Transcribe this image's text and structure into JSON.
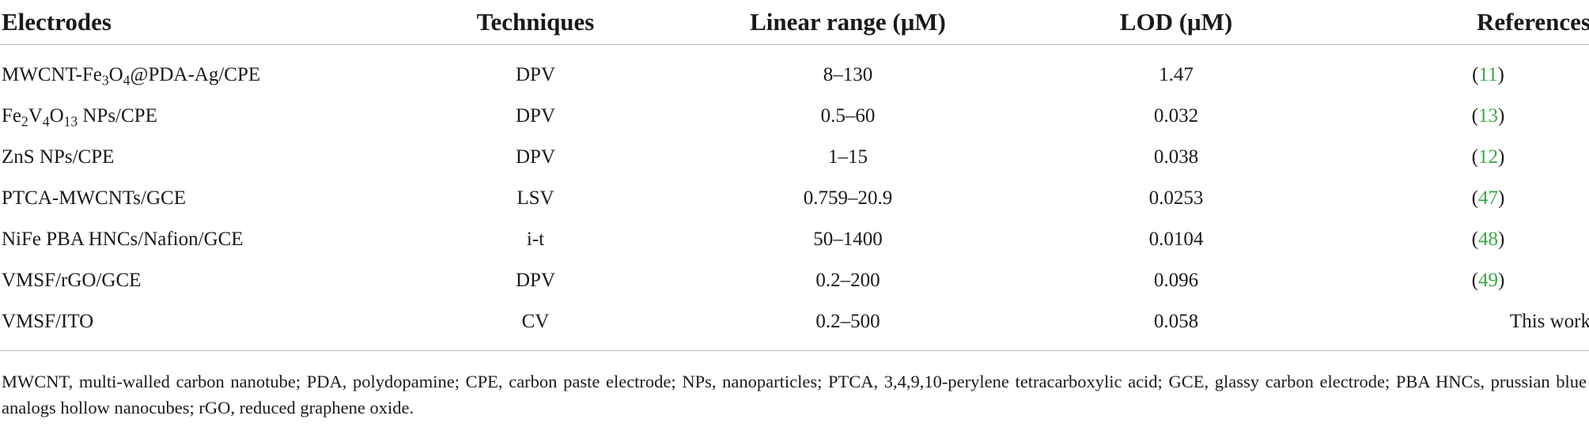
{
  "table": {
    "headers": [
      "Electrodes",
      "Techniques",
      "Linear range (μM)",
      "LOD (μM)",
      "References"
    ],
    "rows": [
      {
        "electrode_parts": [
          "MWCNT-Fe",
          "3",
          "O",
          "4",
          "@PDA-Ag/CPE"
        ],
        "technique": "DPV",
        "linear_range": "8–130",
        "lod": "1.47",
        "reference": {
          "open": "(",
          "num": "11",
          "close": ")"
        }
      },
      {
        "electrode_parts": [
          "Fe",
          "2",
          "V",
          "4",
          "O",
          "13",
          " NPs/CPE"
        ],
        "technique": "DPV",
        "linear_range": "0.5–60",
        "lod": "0.032",
        "reference": {
          "open": "(",
          "num": "13",
          "close": ")"
        }
      },
      {
        "electrode": "ZnS NPs/CPE",
        "technique": "DPV",
        "linear_range": "1–15",
        "lod": "0.038",
        "reference": {
          "open": "(",
          "num": "12",
          "close": ")"
        }
      },
      {
        "electrode": "PTCA-MWCNTs/GCE",
        "technique": "LSV",
        "linear_range": "0.759–20.9",
        "lod": "0.0253",
        "reference": {
          "open": "(",
          "num": "47",
          "close": ")"
        }
      },
      {
        "electrode": "NiFe PBA HNCs/Nafion/GCE",
        "technique": "i-t",
        "linear_range": "50–1400",
        "lod": "0.0104",
        "reference": {
          "open": "(",
          "num": "48",
          "close": ")"
        }
      },
      {
        "electrode": "VMSF/rGO/GCE",
        "technique": "DPV",
        "linear_range": "0.2–200",
        "lod": "0.096",
        "reference": {
          "open": "(",
          "num": "49",
          "close": ")"
        }
      },
      {
        "electrode": "VMSF/ITO",
        "technique": "CV",
        "linear_range": "0.2–500",
        "lod": "0.058",
        "reference_text": "This work"
      }
    ]
  },
  "footnote": "MWCNT, multi-walled carbon nanotube; PDA, polydopamine; CPE, carbon paste electrode; NPs, nanoparticles; PTCA, 3,4,9,10-perylene tetracarboxylic acid; GCE, glassy carbon electrode; PBA HNCs, prussian blue analogs hollow nanocubes; rGO, reduced graphene oxide.",
  "colors": {
    "reference_link": "#3aa845",
    "rule": "#bdbdbd",
    "text": "#1a1a1a"
  }
}
